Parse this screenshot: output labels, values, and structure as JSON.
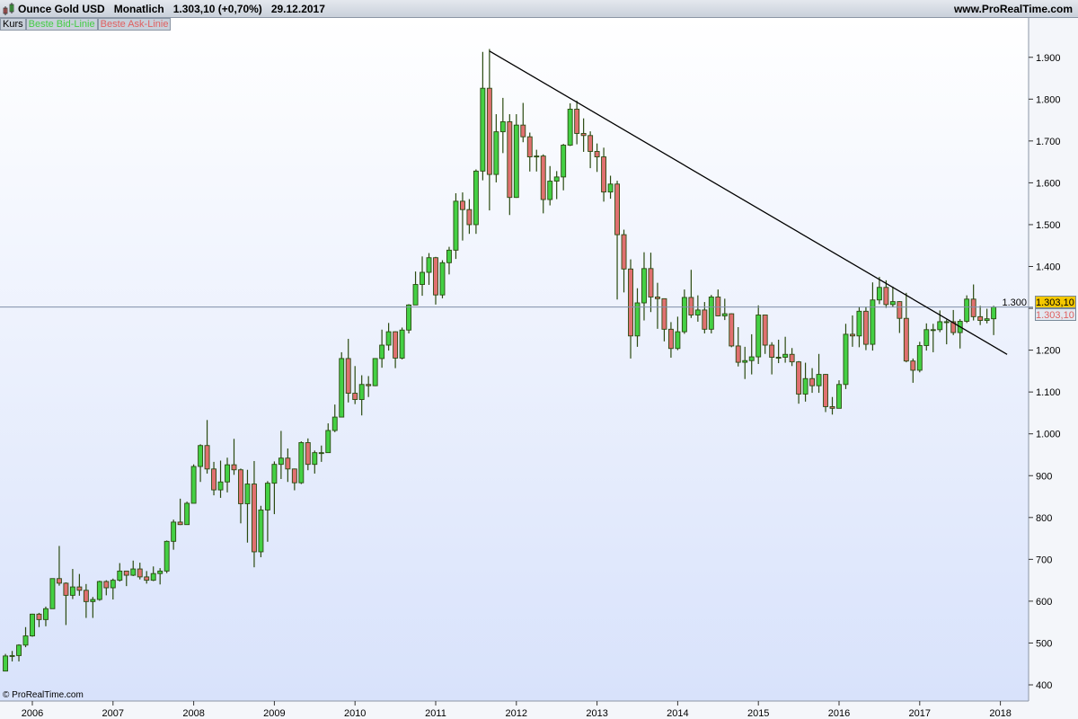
{
  "header": {
    "instrument": "Ounce Gold USD",
    "period": "Monatlich",
    "price": "1.303,10",
    "change": "(+0,70%)",
    "date": "29.12.2017",
    "site": "www.ProRealTime.com"
  },
  "tabs": [
    {
      "label": "Kurs",
      "color": "#000000"
    },
    {
      "label": "Beste Bid-Linie",
      "color": "#44cc44"
    },
    {
      "label": "Beste Ask-Linie",
      "color": "#e06060"
    }
  ],
  "price_labels": {
    "bid": "1.303,10",
    "ask": "1.303,10"
  },
  "copyright": "© ProRealTime.com",
  "colors": {
    "up": "#44d044",
    "down": "#e07070",
    "wick": "#2a4a10",
    "trendline": "#000000",
    "priceline": "#8090a8"
  },
  "chart_data": {
    "type": "candlestick",
    "frequency": "monthly",
    "x_ticks": [
      "2006",
      "2007",
      "2008",
      "2009",
      "2010",
      "2011",
      "2012",
      "2013",
      "2014",
      "2015",
      "2016",
      "2017",
      "2018"
    ],
    "y_ticks": [
      "400",
      "500",
      "600",
      "700",
      "800",
      "900",
      "1.000",
      "1.100",
      "1.200",
      "1.300",
      "1.400",
      "1.500",
      "1.600",
      "1.700",
      "1.800",
      "1.900"
    ],
    "ylim": [
      370,
      1985
    ],
    "y_scale": "linear",
    "start_month": "2005-09",
    "last_price": 1303.1,
    "trendline": [
      [
        "2011-09",
        1915
      ],
      [
        "2018-02",
        1190
      ]
    ],
    "ohlc": [
      [
        433,
        474,
        433,
        469
      ],
      [
        469,
        481,
        456,
        470
      ],
      [
        470,
        497,
        456,
        495
      ],
      [
        495,
        538,
        490,
        517
      ],
      [
        517,
        570,
        515,
        569
      ],
      [
        569,
        572,
        538,
        556
      ],
      [
        556,
        587,
        540,
        582
      ],
      [
        582,
        654,
        582,
        654
      ],
      [
        654,
        732,
        637,
        643
      ],
      [
        643,
        645,
        543,
        614
      ],
      [
        614,
        677,
        605,
        634
      ],
      [
        634,
        665,
        613,
        626
      ],
      [
        626,
        641,
        560,
        599
      ],
      [
        599,
        610,
        560,
        604
      ],
      [
        604,
        649,
        601,
        647
      ],
      [
        647,
        650,
        614,
        632
      ],
      [
        632,
        654,
        604,
        650
      ],
      [
        650,
        691,
        647,
        672
      ],
      [
        672,
        672,
        636,
        662
      ],
      [
        662,
        697,
        660,
        677
      ],
      [
        677,
        692,
        652,
        658
      ],
      [
        658,
        672,
        642,
        650
      ],
      [
        650,
        683,
        648,
        666
      ],
      [
        666,
        679,
        640,
        672
      ],
      [
        672,
        745,
        667,
        743
      ],
      [
        743,
        795,
        723,
        789
      ],
      [
        789,
        845,
        782,
        783
      ],
      [
        783,
        838,
        783,
        834
      ],
      [
        834,
        927,
        834,
        922
      ],
      [
        922,
        975,
        885,
        972
      ],
      [
        972,
        1033,
        905,
        916
      ],
      [
        916,
        933,
        853,
        866
      ],
      [
        866,
        936,
        847,
        885
      ],
      [
        885,
        943,
        860,
        926
      ],
      [
        926,
        988,
        902,
        914
      ],
      [
        914,
        917,
        786,
        833
      ],
      [
        833,
        914,
        740,
        880
      ],
      [
        880,
        935,
        681,
        718
      ],
      [
        718,
        828,
        705,
        818
      ],
      [
        818,
        887,
        742,
        882
      ],
      [
        882,
        934,
        808,
        927
      ],
      [
        927,
        1007,
        892,
        942
      ],
      [
        942,
        965,
        885,
        916
      ],
      [
        916,
        917,
        865,
        883
      ],
      [
        883,
        982,
        880,
        979
      ],
      [
        979,
        989,
        913,
        927
      ],
      [
        927,
        960,
        905,
        955
      ],
      [
        955,
        972,
        933,
        955
      ],
      [
        955,
        1025,
        955,
        1008
      ],
      [
        1008,
        1070,
        1004,
        1040
      ],
      [
        1040,
        1195,
        1040,
        1180
      ],
      [
        1180,
        1227,
        1075,
        1097
      ],
      [
        1097,
        1162,
        1071,
        1082
      ],
      [
        1082,
        1140,
        1044,
        1118
      ],
      [
        1118,
        1138,
        1088,
        1115
      ],
      [
        1115,
        1181,
        1114,
        1180
      ],
      [
        1180,
        1249,
        1158,
        1212
      ],
      [
        1212,
        1265,
        1199,
        1244
      ],
      [
        1244,
        1245,
        1157,
        1181
      ],
      [
        1181,
        1254,
        1178,
        1248
      ],
      [
        1248,
        1310,
        1240,
        1308
      ],
      [
        1308,
        1388,
        1308,
        1357
      ],
      [
        1357,
        1424,
        1330,
        1386
      ],
      [
        1386,
        1432,
        1356,
        1421
      ],
      [
        1421,
        1423,
        1309,
        1332
      ],
      [
        1332,
        1415,
        1324,
        1409
      ],
      [
        1409,
        1447,
        1381,
        1439
      ],
      [
        1439,
        1575,
        1418,
        1556
      ],
      [
        1556,
        1577,
        1462,
        1536
      ],
      [
        1536,
        1561,
        1478,
        1500
      ],
      [
        1500,
        1632,
        1478,
        1628
      ],
      [
        1628,
        1913,
        1606,
        1826
      ],
      [
        1826,
        1920,
        1534,
        1620
      ],
      [
        1620,
        1764,
        1601,
        1722
      ],
      [
        1722,
        1803,
        1671,
        1746
      ],
      [
        1746,
        1764,
        1523,
        1565
      ],
      [
        1565,
        1764,
        1564,
        1738
      ],
      [
        1738,
        1791,
        1697,
        1710
      ],
      [
        1710,
        1720,
        1627,
        1662
      ],
      [
        1662,
        1679,
        1627,
        1664
      ],
      [
        1664,
        1668,
        1527,
        1560
      ],
      [
        1560,
        1640,
        1546,
        1604
      ],
      [
        1604,
        1628,
        1561,
        1614
      ],
      [
        1614,
        1693,
        1582,
        1690
      ],
      [
        1690,
        1790,
        1688,
        1776
      ],
      [
        1776,
        1796,
        1692,
        1718
      ],
      [
        1718,
        1754,
        1674,
        1713
      ],
      [
        1713,
        1723,
        1635,
        1675
      ],
      [
        1675,
        1694,
        1626,
        1662
      ],
      [
        1662,
        1684,
        1555,
        1578
      ],
      [
        1578,
        1617,
        1562,
        1597
      ],
      [
        1597,
        1605,
        1321,
        1476
      ],
      [
        1476,
        1488,
        1338,
        1394
      ],
      [
        1394,
        1417,
        1180,
        1234
      ],
      [
        1234,
        1348,
        1208,
        1313
      ],
      [
        1313,
        1434,
        1271,
        1395
      ],
      [
        1395,
        1433,
        1291,
        1327
      ],
      [
        1327,
        1361,
        1251,
        1323
      ],
      [
        1323,
        1323,
        1221,
        1250
      ],
      [
        1250,
        1267,
        1182,
        1204
      ],
      [
        1204,
        1280,
        1200,
        1244
      ],
      [
        1244,
        1345,
        1239,
        1326
      ],
      [
        1326,
        1392,
        1277,
        1284
      ],
      [
        1284,
        1331,
        1268,
        1296
      ],
      [
        1296,
        1315,
        1240,
        1250
      ],
      [
        1250,
        1332,
        1240,
        1327
      ],
      [
        1327,
        1345,
        1281,
        1282
      ],
      [
        1282,
        1323,
        1272,
        1287
      ],
      [
        1287,
        1288,
        1207,
        1210
      ],
      [
        1210,
        1255,
        1161,
        1171
      ],
      [
        1171,
        1208,
        1131,
        1175
      ],
      [
        1175,
        1238,
        1142,
        1184
      ],
      [
        1184,
        1307,
        1167,
        1284
      ],
      [
        1284,
        1284,
        1191,
        1212
      ],
      [
        1212,
        1219,
        1142,
        1183
      ],
      [
        1183,
        1225,
        1169,
        1183
      ],
      [
        1183,
        1232,
        1170,
        1190
      ],
      [
        1190,
        1205,
        1162,
        1172
      ],
      [
        1172,
        1174,
        1072,
        1095
      ],
      [
        1095,
        1170,
        1077,
        1132
      ],
      [
        1132,
        1157,
        1098,
        1115
      ],
      [
        1115,
        1191,
        1098,
        1142
      ],
      [
        1142,
        1143,
        1052,
        1065
      ],
      [
        1065,
        1088,
        1046,
        1061
      ],
      [
        1061,
        1128,
        1061,
        1118
      ],
      [
        1118,
        1263,
        1107,
        1238
      ],
      [
        1238,
        1283,
        1208,
        1234
      ],
      [
        1234,
        1304,
        1207,
        1293
      ],
      [
        1293,
        1304,
        1200,
        1214
      ],
      [
        1214,
        1362,
        1199,
        1320
      ],
      [
        1320,
        1375,
        1310,
        1350
      ],
      [
        1350,
        1367,
        1301,
        1309
      ],
      [
        1309,
        1352,
        1303,
        1316
      ],
      [
        1316,
        1317,
        1241,
        1276
      ],
      [
        1276,
        1337,
        1171,
        1174
      ],
      [
        1174,
        1180,
        1122,
        1152
      ],
      [
        1152,
        1220,
        1147,
        1211
      ],
      [
        1211,
        1264,
        1199,
        1249
      ],
      [
        1249,
        1263,
        1195,
        1249
      ],
      [
        1249,
        1295,
        1243,
        1268
      ],
      [
        1268,
        1273,
        1214,
        1268
      ],
      [
        1268,
        1296,
        1236,
        1242
      ],
      [
        1242,
        1274,
        1204,
        1269
      ],
      [
        1269,
        1331,
        1265,
        1322
      ],
      [
        1322,
        1357,
        1271,
        1280
      ],
      [
        1280,
        1306,
        1260,
        1271
      ],
      [
        1271,
        1299,
        1264,
        1275
      ],
      [
        1275,
        1306,
        1236,
        1303
      ]
    ]
  }
}
